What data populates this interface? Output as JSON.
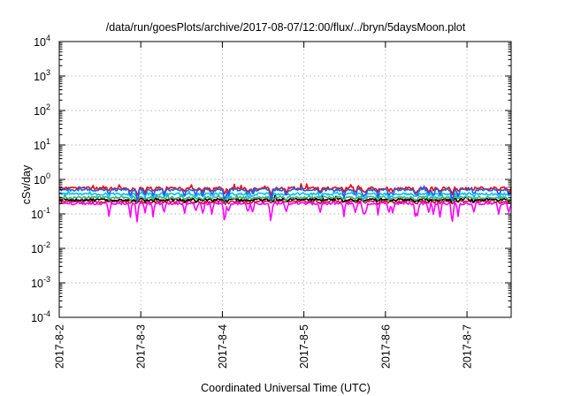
{
  "chart_data": {
    "type": "line",
    "title": "/data/run/goesPlots/archive/2017-08-07/12:00/flux/../bryn/5daysMoon.plot",
    "xlabel": "Coordinated Universal Time (UTC)",
    "ylabel": "cSv/day",
    "y_scale": "log",
    "ylim": [
      0.0001,
      10000
    ],
    "y_ticks": [
      {
        "value": 0.0001,
        "base": "10",
        "exp": "-4"
      },
      {
        "value": 0.001,
        "base": "10",
        "exp": "-3"
      },
      {
        "value": 0.01,
        "base": "10",
        "exp": "-2"
      },
      {
        "value": 0.1,
        "base": "10",
        "exp": "-1"
      },
      {
        "value": 1,
        "base": "10",
        "exp": "0"
      },
      {
        "value": 10,
        "base": "10",
        "exp": "1"
      },
      {
        "value": 100,
        "base": "10",
        "exp": "2"
      },
      {
        "value": 1000,
        "base": "10",
        "exp": "3"
      },
      {
        "value": 10000,
        "base": "10",
        "exp": "4"
      }
    ],
    "xlim": [
      "2017-08-02",
      "2017-08-07T13:00"
    ],
    "x_ticks": [
      "2017-8-2",
      "2017-8-3",
      "2017-8-4",
      "2017-8-5",
      "2017-8-6",
      "2017-8-7"
    ],
    "grid": true,
    "legend": "none",
    "series": [
      {
        "color": "#ff00ff",
        "level": 0.2,
        "spike_depth": 0.55
      },
      {
        "color": "#d4143a",
        "level": 0.23,
        "spike_depth": 0.1
      },
      {
        "color": "#000000",
        "level": 0.26,
        "spike_depth": 0.1
      },
      {
        "color": "#3cb371",
        "level": 0.3,
        "spike_depth": 0.12
      },
      {
        "color": "#00bfff",
        "level": 0.38,
        "spike_depth": 0.2
      },
      {
        "color": "#ff0000",
        "level": 0.56,
        "spike_depth": 0.25
      },
      {
        "color": "#1f5fe8",
        "level": 0.5,
        "spike_depth": 0.35
      }
    ]
  }
}
